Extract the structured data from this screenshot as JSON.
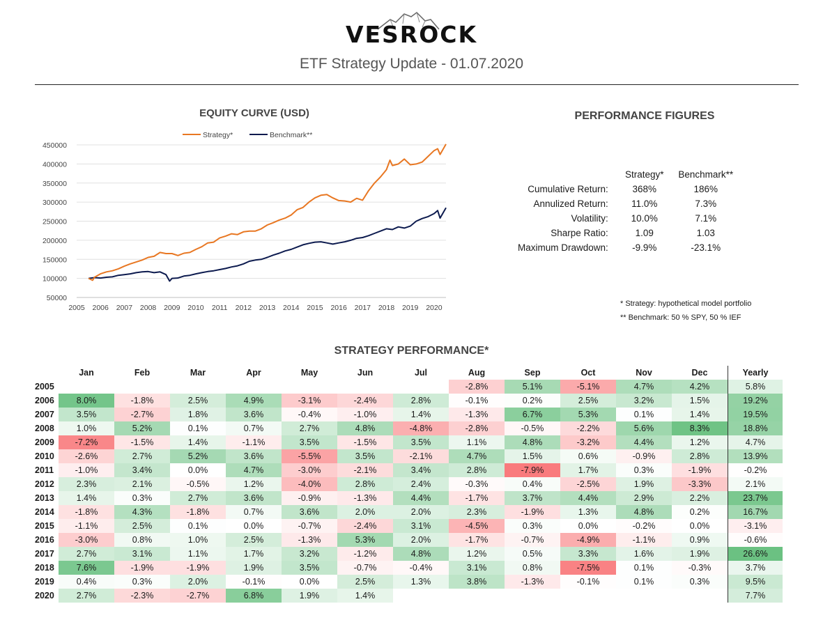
{
  "header": {
    "brand": "VESROCK",
    "subtitle": "ETF Strategy Update - 01.07.2020"
  },
  "colors": {
    "strategy": "#E87722",
    "benchmark": "#0C1A4E",
    "positive": "#63BE7B",
    "negative": "#F8696B"
  },
  "logo_icon": "mountain-icon",
  "performance": {
    "title": "PERFORMANCE FIGURES",
    "headers": [
      "Strategy*",
      "Benchmark**"
    ],
    "rows": [
      {
        "label": "Cumulative Return:",
        "strategy": "368%",
        "benchmark": "186%"
      },
      {
        "label": "Annulized Return:",
        "strategy": "11.0%",
        "benchmark": "7.3%"
      },
      {
        "label": "Volatility:",
        "strategy": "10.0%",
        "benchmark": "7.1%"
      },
      {
        "label": "Sharpe Ratio:",
        "strategy": "1.09",
        "benchmark": "1.03"
      },
      {
        "label": "Maximum Drawdown:",
        "strategy": "-9.9%",
        "benchmark": "-23.1%"
      }
    ]
  },
  "notes": {
    "strategy": "* Strategy: hypothetical model portfolio",
    "benchmark": "** Benchmark: 50 % SPY, 50 % IEF"
  },
  "chart_data": [
    {
      "type": "line",
      "title": "EQUITY CURVE (USD)",
      "xlabel": "",
      "ylabel": "",
      "xlim": [
        2005,
        2020.5
      ],
      "ylim": [
        50000,
        450000
      ],
      "xticks": [
        2005,
        2006,
        2007,
        2008,
        2009,
        2010,
        2011,
        2012,
        2013,
        2014,
        2015,
        2016,
        2017,
        2018,
        2019,
        2020
      ],
      "yticks": [
        50000,
        100000,
        150000,
        200000,
        250000,
        300000,
        350000,
        400000,
        450000
      ],
      "grid": "horizontal",
      "legend": "top",
      "series": [
        {
          "name": "Strategy*",
          "x": [
            2005.5,
            2005.67,
            2005.75,
            2006.0,
            2006.25,
            2006.5,
            2006.75,
            2007.0,
            2007.25,
            2007.5,
            2007.75,
            2008.0,
            2008.25,
            2008.5,
            2008.75,
            2009.0,
            2009.25,
            2009.5,
            2009.75,
            2010.0,
            2010.25,
            2010.5,
            2010.75,
            2011.0,
            2011.25,
            2011.5,
            2011.75,
            2012.0,
            2012.25,
            2012.5,
            2012.75,
            2013.0,
            2013.25,
            2013.5,
            2013.75,
            2014.0,
            2014.25,
            2014.5,
            2014.75,
            2015.0,
            2015.25,
            2015.5,
            2015.75,
            2016.0,
            2016.25,
            2016.5,
            2016.75,
            2017.0,
            2017.25,
            2017.5,
            2017.75,
            2018.0,
            2018.15,
            2018.25,
            2018.5,
            2018.75,
            2019.0,
            2019.25,
            2019.5,
            2019.75,
            2020.0,
            2020.15,
            2020.25,
            2020.5
          ],
          "y": [
            100000,
            95000,
            103000,
            112000,
            117000,
            120000,
            125000,
            132000,
            138000,
            143000,
            148000,
            155000,
            158000,
            168000,
            165000,
            165000,
            160000,
            166000,
            168000,
            176000,
            183000,
            193000,
            195000,
            206000,
            211000,
            217000,
            215000,
            222000,
            224000,
            224000,
            230000,
            240000,
            246000,
            253000,
            258000,
            266000,
            280000,
            286000,
            300000,
            311000,
            318000,
            320000,
            311000,
            304000,
            303000,
            300000,
            310000,
            305000,
            330000,
            350000,
            366000,
            385000,
            410000,
            396000,
            400000,
            413000,
            398000,
            400000,
            405000,
            420000,
            435000,
            440000,
            425000,
            452000
          ]
        },
        {
          "name": "Benchmark**",
          "x": [
            2005.5,
            2005.75,
            2006.0,
            2006.25,
            2006.5,
            2006.75,
            2007.0,
            2007.25,
            2007.5,
            2007.75,
            2008.0,
            2008.25,
            2008.5,
            2008.75,
            2008.9,
            2009.0,
            2009.25,
            2009.5,
            2009.75,
            2010.0,
            2010.25,
            2010.5,
            2010.75,
            2011.0,
            2011.25,
            2011.5,
            2011.75,
            2012.0,
            2012.25,
            2012.5,
            2012.75,
            2013.0,
            2013.25,
            2013.5,
            2013.75,
            2014.0,
            2014.25,
            2014.5,
            2014.75,
            2015.0,
            2015.25,
            2015.5,
            2015.75,
            2016.0,
            2016.25,
            2016.5,
            2016.75,
            2017.0,
            2017.25,
            2017.5,
            2017.75,
            2018.0,
            2018.25,
            2018.5,
            2018.75,
            2019.0,
            2019.25,
            2019.5,
            2019.75,
            2020.0,
            2020.15,
            2020.25,
            2020.5
          ],
          "y": [
            100000,
            102000,
            101000,
            103000,
            104000,
            108000,
            110000,
            112000,
            115000,
            117000,
            118000,
            115000,
            117000,
            110000,
            93000,
            100000,
            101000,
            106000,
            108000,
            112000,
            115000,
            118000,
            120000,
            123000,
            126000,
            130000,
            133000,
            138000,
            145000,
            148000,
            150000,
            155000,
            161000,
            166000,
            172000,
            176000,
            182000,
            188000,
            192000,
            195000,
            196000,
            193000,
            190000,
            193000,
            196000,
            200000,
            205000,
            207000,
            212000,
            218000,
            224000,
            230000,
            228000,
            235000,
            232000,
            237000,
            250000,
            257000,
            262000,
            270000,
            278000,
            258000,
            285000
          ]
        }
      ]
    },
    {
      "type": "table",
      "title": "STRATEGY PERFORMANCE*",
      "columns": [
        "Jan",
        "Feb",
        "Mar",
        "Apr",
        "May",
        "Jun",
        "Jul",
        "Aug",
        "Sep",
        "Oct",
        "Nov",
        "Dec",
        "Yearly"
      ],
      "rows": [
        {
          "year": "2005",
          "values": [
            "",
            "",
            "",
            "",
            "",
            "",
            "",
            "-2.8%",
            "5.1%",
            "-5.1%",
            "4.7%",
            "4.2%",
            "5.8%"
          ]
        },
        {
          "year": "2006",
          "values": [
            "8.0%",
            "-1.8%",
            "2.5%",
            "4.9%",
            "-3.1%",
            "-2.4%",
            "2.8%",
            "-0.1%",
            "0.2%",
            "2.5%",
            "3.2%",
            "1.5%",
            "19.2%"
          ]
        },
        {
          "year": "2007",
          "values": [
            "3.5%",
            "-2.7%",
            "1.8%",
            "3.6%",
            "-0.4%",
            "-1.0%",
            "1.4%",
            "-1.3%",
            "6.7%",
            "5.3%",
            "0.1%",
            "1.4%",
            "19.5%"
          ]
        },
        {
          "year": "2008",
          "values": [
            "1.0%",
            "5.2%",
            "0.1%",
            "0.7%",
            "2.7%",
            "4.8%",
            "-4.8%",
            "-2.8%",
            "-0.5%",
            "-2.2%",
            "5.6%",
            "8.3%",
            "18.8%"
          ]
        },
        {
          "year": "2009",
          "values": [
            "-7.2%",
            "-1.5%",
            "1.4%",
            "-1.1%",
            "3.5%",
            "-1.5%",
            "3.5%",
            "1.1%",
            "4.8%",
            "-3.2%",
            "4.4%",
            "1.2%",
            "4.7%"
          ]
        },
        {
          "year": "2010",
          "values": [
            "-2.6%",
            "2.7%",
            "5.2%",
            "3.6%",
            "-5.5%",
            "3.5%",
            "-2.1%",
            "4.7%",
            "1.5%",
            "0.6%",
            "-0.9%",
            "2.8%",
            "13.9%"
          ]
        },
        {
          "year": "2011",
          "values": [
            "-1.0%",
            "3.4%",
            "0.0%",
            "4.7%",
            "-3.0%",
            "-2.1%",
            "3.4%",
            "2.8%",
            "-7.9%",
            "1.7%",
            "0.3%",
            "-1.9%",
            "-0.2%"
          ]
        },
        {
          "year": "2012",
          "values": [
            "2.3%",
            "2.1%",
            "-0.5%",
            "1.2%",
            "-4.0%",
            "2.8%",
            "2.4%",
            "-0.3%",
            "0.4%",
            "-2.5%",
            "1.9%",
            "-3.3%",
            "2.1%"
          ]
        },
        {
          "year": "2013",
          "values": [
            "1.4%",
            "0.3%",
            "2.7%",
            "3.6%",
            "-0.9%",
            "-1.3%",
            "4.4%",
            "-1.7%",
            "3.7%",
            "4.4%",
            "2.9%",
            "2.2%",
            "23.7%"
          ]
        },
        {
          "year": "2014",
          "values": [
            "-1.8%",
            "4.3%",
            "-1.8%",
            "0.7%",
            "3.6%",
            "2.0%",
            "2.0%",
            "2.3%",
            "-1.9%",
            "1.3%",
            "4.8%",
            "0.2%",
            "16.7%"
          ]
        },
        {
          "year": "2015",
          "values": [
            "-1.1%",
            "2.5%",
            "0.1%",
            "0.0%",
            "-0.7%",
            "-2.4%",
            "3.1%",
            "-4.5%",
            "0.3%",
            "0.0%",
            "-0.2%",
            "0.0%",
            "-3.1%"
          ]
        },
        {
          "year": "2016",
          "values": [
            "-3.0%",
            "0.8%",
            "1.0%",
            "2.5%",
            "-1.3%",
            "5.3%",
            "2.0%",
            "-1.7%",
            "-0.7%",
            "-4.9%",
            "-1.1%",
            "0.9%",
            "-0.6%"
          ]
        },
        {
          "year": "2017",
          "values": [
            "2.7%",
            "3.1%",
            "1.1%",
            "1.7%",
            "3.2%",
            "-1.2%",
            "4.8%",
            "1.2%",
            "0.5%",
            "3.3%",
            "1.6%",
            "1.9%",
            "26.6%"
          ]
        },
        {
          "year": "2018",
          "values": [
            "7.6%",
            "-1.9%",
            "-1.9%",
            "1.9%",
            "3.5%",
            "-0.7%",
            "-0.4%",
            "3.1%",
            "0.8%",
            "-7.5%",
            "0.1%",
            "-0.3%",
            "3.7%"
          ]
        },
        {
          "year": "2019",
          "values": [
            "0.4%",
            "0.3%",
            "2.0%",
            "-0.1%",
            "0.0%",
            "2.5%",
            "1.3%",
            "3.8%",
            "-1.3%",
            "-0.1%",
            "0.1%",
            "0.3%",
            "9.5%"
          ]
        },
        {
          "year": "2020",
          "values": [
            "2.7%",
            "-2.3%",
            "-2.7%",
            "6.8%",
            "1.9%",
            "1.4%",
            "",
            "",
            "",
            "",
            "",
            "",
            "7.7%"
          ]
        }
      ]
    }
  ]
}
